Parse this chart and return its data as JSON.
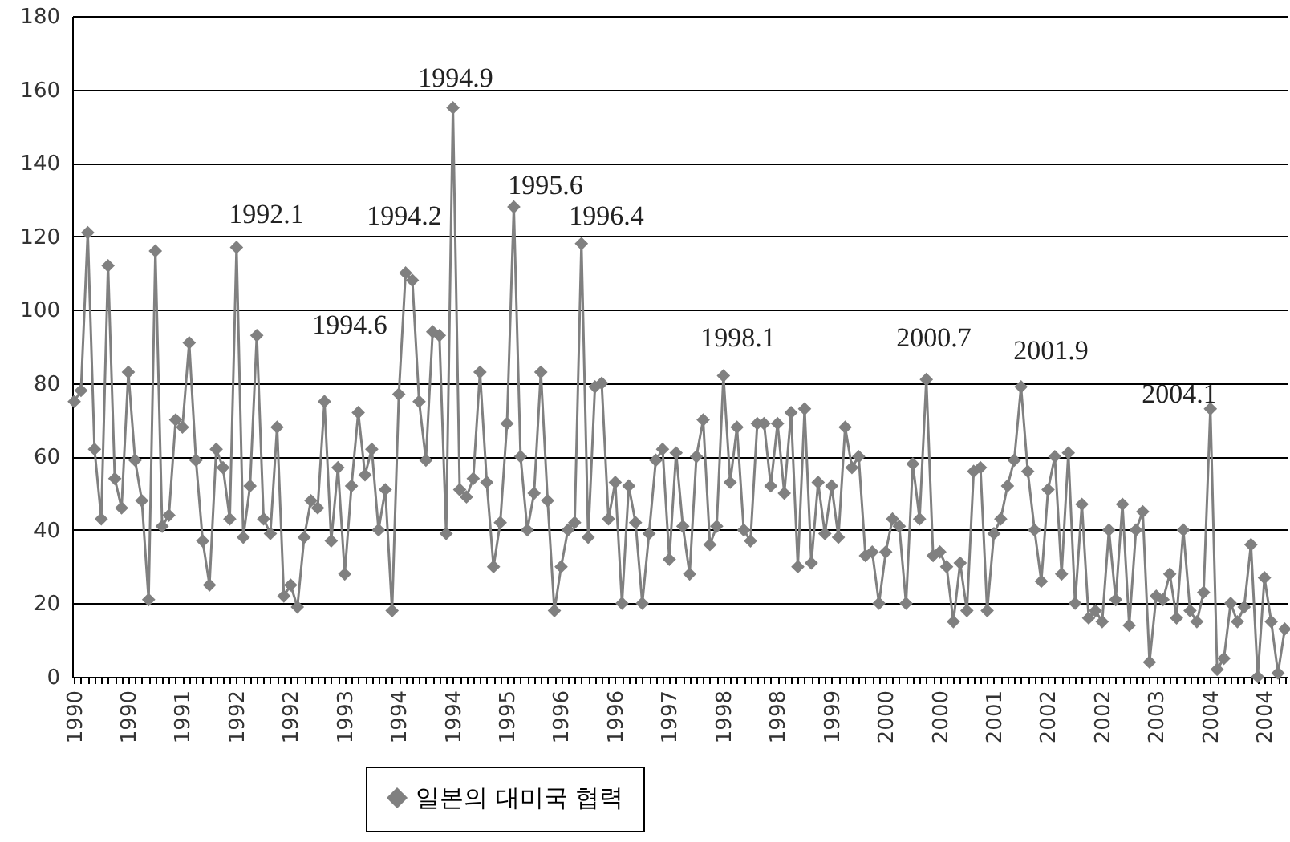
{
  "chart_data": {
    "type": "line",
    "categories": [
      "1990",
      null,
      null,
      null,
      null,
      null,
      null,
      null,
      "1990",
      null,
      null,
      null,
      null,
      null,
      null,
      null,
      "1991",
      null,
      null,
      null,
      null,
      null,
      null,
      null,
      "1992",
      null,
      null,
      null,
      null,
      null,
      null,
      null,
      "1992",
      null,
      null,
      null,
      null,
      null,
      null,
      null,
      "1993",
      null,
      null,
      null,
      null,
      null,
      null,
      null,
      "1994",
      null,
      null,
      null,
      null,
      null,
      null,
      null,
      "1994",
      null,
      null,
      null,
      null,
      null,
      null,
      null,
      "1995",
      null,
      null,
      null,
      null,
      null,
      null,
      null,
      "1996",
      null,
      null,
      null,
      null,
      null,
      null,
      null,
      "1996",
      null,
      null,
      null,
      null,
      null,
      null,
      null,
      "1997",
      null,
      null,
      null,
      null,
      null,
      null,
      null,
      "1998",
      null,
      null,
      null,
      null,
      null,
      null,
      null,
      "1998",
      null,
      null,
      null,
      null,
      null,
      null,
      null,
      "1999",
      null,
      null,
      null,
      null,
      null,
      null,
      null,
      "2000",
      null,
      null,
      null,
      null,
      null,
      null,
      null,
      "2000",
      null,
      null,
      null,
      null,
      null,
      null,
      null,
      "2001",
      null,
      null,
      null,
      null,
      null,
      null,
      null,
      "2002",
      null,
      null,
      null,
      null,
      null,
      null,
      null,
      "2002",
      null,
      null,
      null,
      null,
      null,
      null,
      null,
      "2003",
      null,
      null,
      null,
      null,
      null,
      null,
      null,
      "2004",
      null,
      null,
      null,
      null,
      null,
      null,
      null,
      "2004",
      null,
      null,
      null
    ],
    "series": [
      {
        "name": "일본의 대미국 협력",
        "color": "#808080",
        "values": [
          75,
          78,
          121,
          62,
          43,
          112,
          54,
          46,
          83,
          59,
          48,
          21,
          116,
          41,
          44,
          70,
          68,
          91,
          59,
          37,
          25,
          62,
          57,
          43,
          117,
          38,
          52,
          93,
          43,
          39,
          68,
          22,
          25,
          19,
          38,
          48,
          46,
          75,
          37,
          57,
          28,
          52,
          72,
          55,
          62,
          40,
          51,
          18,
          77,
          110,
          108,
          75,
          59,
          94,
          93,
          39,
          155,
          51,
          49,
          54,
          83,
          53,
          30,
          42,
          69,
          128,
          60,
          40,
          50,
          83,
          48,
          18,
          30,
          40,
          42,
          118,
          38,
          79,
          80,
          43,
          53,
          20,
          52,
          42,
          20,
          39,
          59,
          62,
          32,
          61,
          41,
          28,
          60,
          70,
          36,
          41,
          82,
          53,
          68,
          40,
          37,
          69,
          69,
          52,
          69,
          50,
          72,
          30,
          73,
          31,
          53,
          39,
          52,
          38,
          68,
          57,
          60,
          33,
          34,
          20,
          34,
          43,
          41,
          20,
          58,
          43,
          81,
          33,
          34,
          30,
          15,
          31,
          18,
          56,
          57,
          18,
          39,
          43,
          52,
          59,
          79,
          56,
          40,
          26,
          51,
          60,
          28,
          61,
          20,
          47,
          16,
          18,
          15,
          40,
          21,
          47,
          14,
          40,
          45,
          4,
          22,
          21,
          28,
          16,
          40,
          18,
          15,
          23,
          73,
          2,
          5,
          20,
          15,
          19,
          36,
          0,
          27,
          15,
          1,
          13
        ]
      }
    ],
    "ylim": [
      0,
      180
    ],
    "yticks": [
      0,
      20,
      40,
      60,
      80,
      100,
      120,
      140,
      160,
      180
    ],
    "grid": "y",
    "legend": "bottom",
    "marker": "diamond",
    "line_style": "solid",
    "annotations": [
      "1992.1",
      "1994.2",
      "1994.6",
      "1994.9",
      "1995.6",
      "1996.4",
      "1998.1",
      "2000.7",
      "2001.9",
      "2004.1"
    ]
  }
}
